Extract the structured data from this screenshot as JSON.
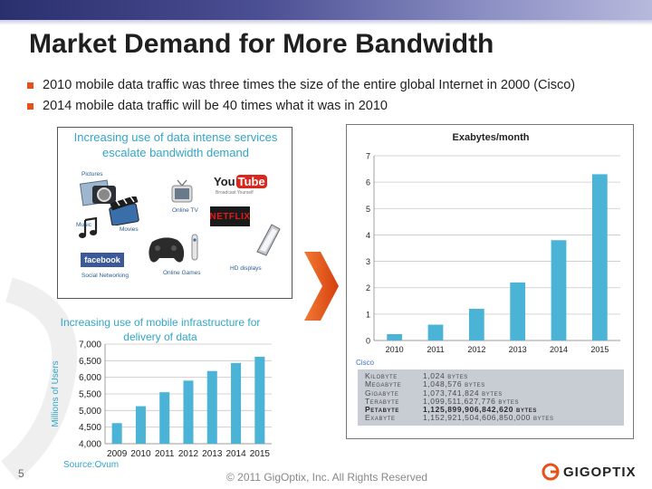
{
  "slide": {
    "title": "Market Demand for More Bandwidth",
    "bullets": [
      "2010 mobile data traffic was three times the size of the entire global Internet in 2000 (Cisco)",
      "2014 mobile data traffic will be 40 times what it was in 2010"
    ],
    "page_number": "5",
    "copyright": "© 2011 GigOptix, Inc.  All Rights Reserved",
    "logo": "GIGOPTIX",
    "accent_color": "#e8501a",
    "bar_color": "#4bb3d6"
  },
  "demand_box": {
    "title": "Increasing use of data intense services escalate bandwidth demand",
    "items": {
      "pictures": "Pictures",
      "music": "Music",
      "movies": "Movies",
      "online_tv": "Online TV",
      "youtube": "YouTube",
      "youtube_tag": "Broadcast Yourself",
      "netflix": "NETFLIX",
      "facebook": "facebook",
      "social": "Social Networking",
      "games": "Online Games",
      "hd": "HD displays"
    }
  },
  "mobile": {
    "title": "Increasing use of mobile infrastructure for delivery of data",
    "source": "Source:Ovum"
  },
  "exabytes": {
    "source": "Cisco",
    "units": [
      {
        "name": "Kilobyte",
        "value": "1,024 bytes",
        "bold": false
      },
      {
        "name": "Megabyte",
        "value": "1,048,576 bytes",
        "bold": false
      },
      {
        "name": "Gigabyte",
        "value": "1,073,741,824 bytes",
        "bold": false
      },
      {
        "name": "Terabyte",
        "value": "1,099,511,627,776 bytes",
        "bold": false
      },
      {
        "name": "Petabyte",
        "value": "1,125,899,906,842,620 bytes",
        "bold": true
      },
      {
        "name": "Exabyte",
        "value": "1,152,921,504,606,850,000 bytes",
        "bold": false
      }
    ]
  },
  "chart_data": [
    {
      "type": "bar",
      "title": "Increasing use of mobile infrastructure for delivery of data",
      "ylabel": "Millions of Users",
      "xlabel": "",
      "categories": [
        "2009",
        "2010",
        "2011",
        "2012",
        "2013",
        "2014",
        "2015"
      ],
      "values": [
        4620,
        5130,
        5550,
        5900,
        6190,
        6430,
        6620
      ],
      "ylim": [
        4000,
        7000
      ],
      "yticks": [
        "4,000",
        "4,500",
        "5,000",
        "5,500",
        "6,000",
        "6,500",
        "7,000"
      ],
      "grid": true,
      "color": "#4bb3d6"
    },
    {
      "type": "bar",
      "title": "Exabytes/month",
      "xlabel": "",
      "ylabel": "",
      "categories": [
        "2010",
        "2011",
        "2012",
        "2013",
        "2014",
        "2015"
      ],
      "values": [
        0.24,
        0.6,
        1.2,
        2.2,
        3.8,
        6.3
      ],
      "ylim": [
        0,
        7
      ],
      "yticks": [
        "0",
        "1",
        "2",
        "3",
        "4",
        "5",
        "6",
        "7"
      ],
      "grid": true,
      "color": "#4bb3d6"
    }
  ]
}
